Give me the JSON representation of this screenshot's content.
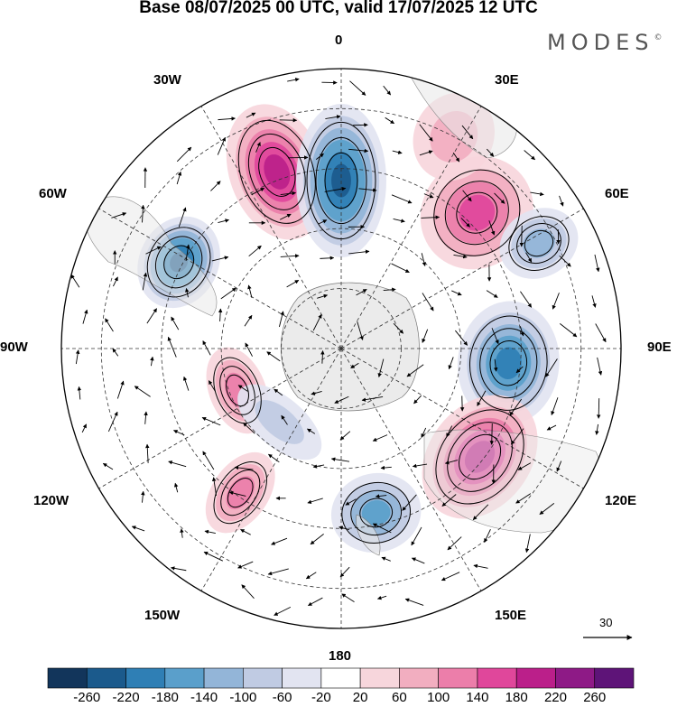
{
  "title": "Base 08/07/2025 00 UTC, valid 17/07/2025 12 UTC",
  "brand": {
    "text": "MODES",
    "mark": "©"
  },
  "longitude_labels": {
    "n0": "0",
    "n30e": "30E",
    "n60e": "60E",
    "e90": "90E",
    "n120e": "120E",
    "n150e": "150E",
    "s180": "180",
    "n150w": "150W",
    "n120w": "120W",
    "w90": "90W",
    "n60w": "60W",
    "n30w": "30W"
  },
  "vector_scale": {
    "label": "30"
  },
  "colorbar": {
    "labels": [
      "-260",
      "-220",
      "-180",
      "-140",
      "-100",
      "-60",
      "-20",
      "20",
      "60",
      "100",
      "140",
      "180",
      "220",
      "260"
    ],
    "colors": [
      "#12355b",
      "#1b5a8c",
      "#2f7fb5",
      "#5a9fcb",
      "#93b5d8",
      "#c0cbe3",
      "#e2e4f1",
      "#ffffff",
      "#f7d6dc",
      "#f2aec0",
      "#ec7eaa",
      "#e0479b",
      "#bb1f8a",
      "#8e1a86",
      "#5e1478"
    ]
  },
  "anomalies": [
    {
      "name": "high-nw-magenta",
      "lon": -20,
      "lat": -43,
      "rx": 42,
      "ry": 62,
      "level": 200
    },
    {
      "name": "low-north-navy",
      "lon": 0,
      "lat": -48,
      "rx": 40,
      "ry": 68,
      "level": -240
    },
    {
      "name": "high-ne-magenta",
      "lon": 45,
      "lat": -42,
      "rx": 48,
      "ry": 52,
      "level": 150
    },
    {
      "name": "low-ne-blue",
      "lon": 62,
      "lat": -34,
      "rx": 30,
      "ry": 36,
      "level": -110
    },
    {
      "name": "low-w-navy",
      "lon": -62,
      "lat": -44,
      "rx": 42,
      "ry": 35,
      "level": -220
    },
    {
      "name": "low-e-blue",
      "lon": 95,
      "lat": -48,
      "rx": 55,
      "ry": 45,
      "level": -200
    },
    {
      "name": "high-se-magenta",
      "lon": 128,
      "lat": -46,
      "rx": 60,
      "ry": 45,
      "level": 200
    },
    {
      "name": "low-s-blue",
      "lon": 168,
      "lat": -48,
      "rx": 40,
      "ry": 35,
      "level": -140
    },
    {
      "name": "high-sw-pink",
      "lon": -145,
      "lat": -46,
      "rx": 25,
      "ry": 40,
      "level": 120
    },
    {
      "name": "high-w-pink",
      "lon": -112,
      "lat": -62,
      "rx": 40,
      "ry": 25,
      "level": 100
    },
    {
      "name": "low-sw-blue",
      "lon": -140,
      "lat": -66,
      "rx": 45,
      "ry": 22,
      "level": -80
    },
    {
      "name": "high-nnne-pink",
      "lon": 28,
      "lat": -30,
      "rx": 35,
      "ry": 40,
      "level": 60
    }
  ]
}
